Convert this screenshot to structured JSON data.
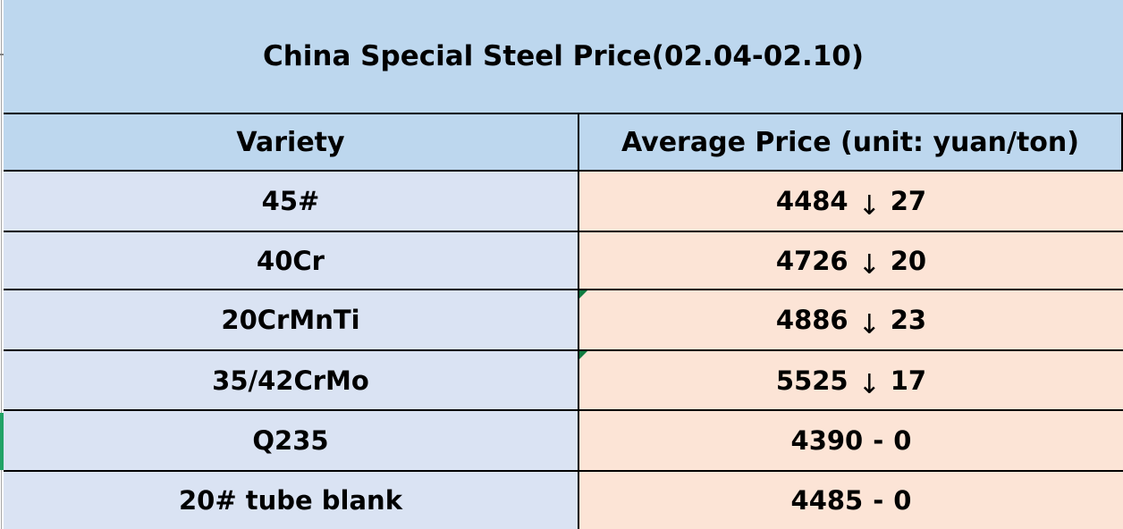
{
  "table": {
    "title": "China Special Steel Price(02.04-02.10)",
    "columns": {
      "variety": "Variety",
      "price": "Average Price (unit: yuan/ton)"
    },
    "rows": [
      {
        "variety": "45#",
        "price": "4484",
        "glyph": "↓",
        "change": "27",
        "trend": "down",
        "indicator": "none"
      },
      {
        "variety": "40Cr",
        "price": "4726",
        "glyph": "↓",
        "change": "20",
        "trend": "down",
        "indicator": "none"
      },
      {
        "variety": "20CrMnTi",
        "price": "4886",
        "glyph": "↓",
        "change": "23",
        "trend": "down",
        "indicator": "error-triangle"
      },
      {
        "variety": "35/42CrMo",
        "price": "5525",
        "glyph": "↓",
        "change": "17",
        "trend": "down",
        "indicator": "error-triangle"
      },
      {
        "variety": "Q235",
        "price": "4390",
        "glyph": "-",
        "change": "0",
        "trend": "flat",
        "indicator": "green-left-stripe"
      },
      {
        "variety": "20# tube blank",
        "price": "4485",
        "glyph": "-",
        "change": "0",
        "trend": "flat",
        "indicator": "none"
      }
    ],
    "trend_glyphs": {
      "down": "↓",
      "flat": "-"
    }
  },
  "colors": {
    "title_header_bg": "#bdd7ee",
    "variety_bg": "#dae3f3",
    "price_bg": "#fce4d6",
    "border": "#000000",
    "error_triangle_green": "#107c41",
    "left_stripe_green": "#21a366",
    "rail_line_gray": "#a6a6a6"
  }
}
